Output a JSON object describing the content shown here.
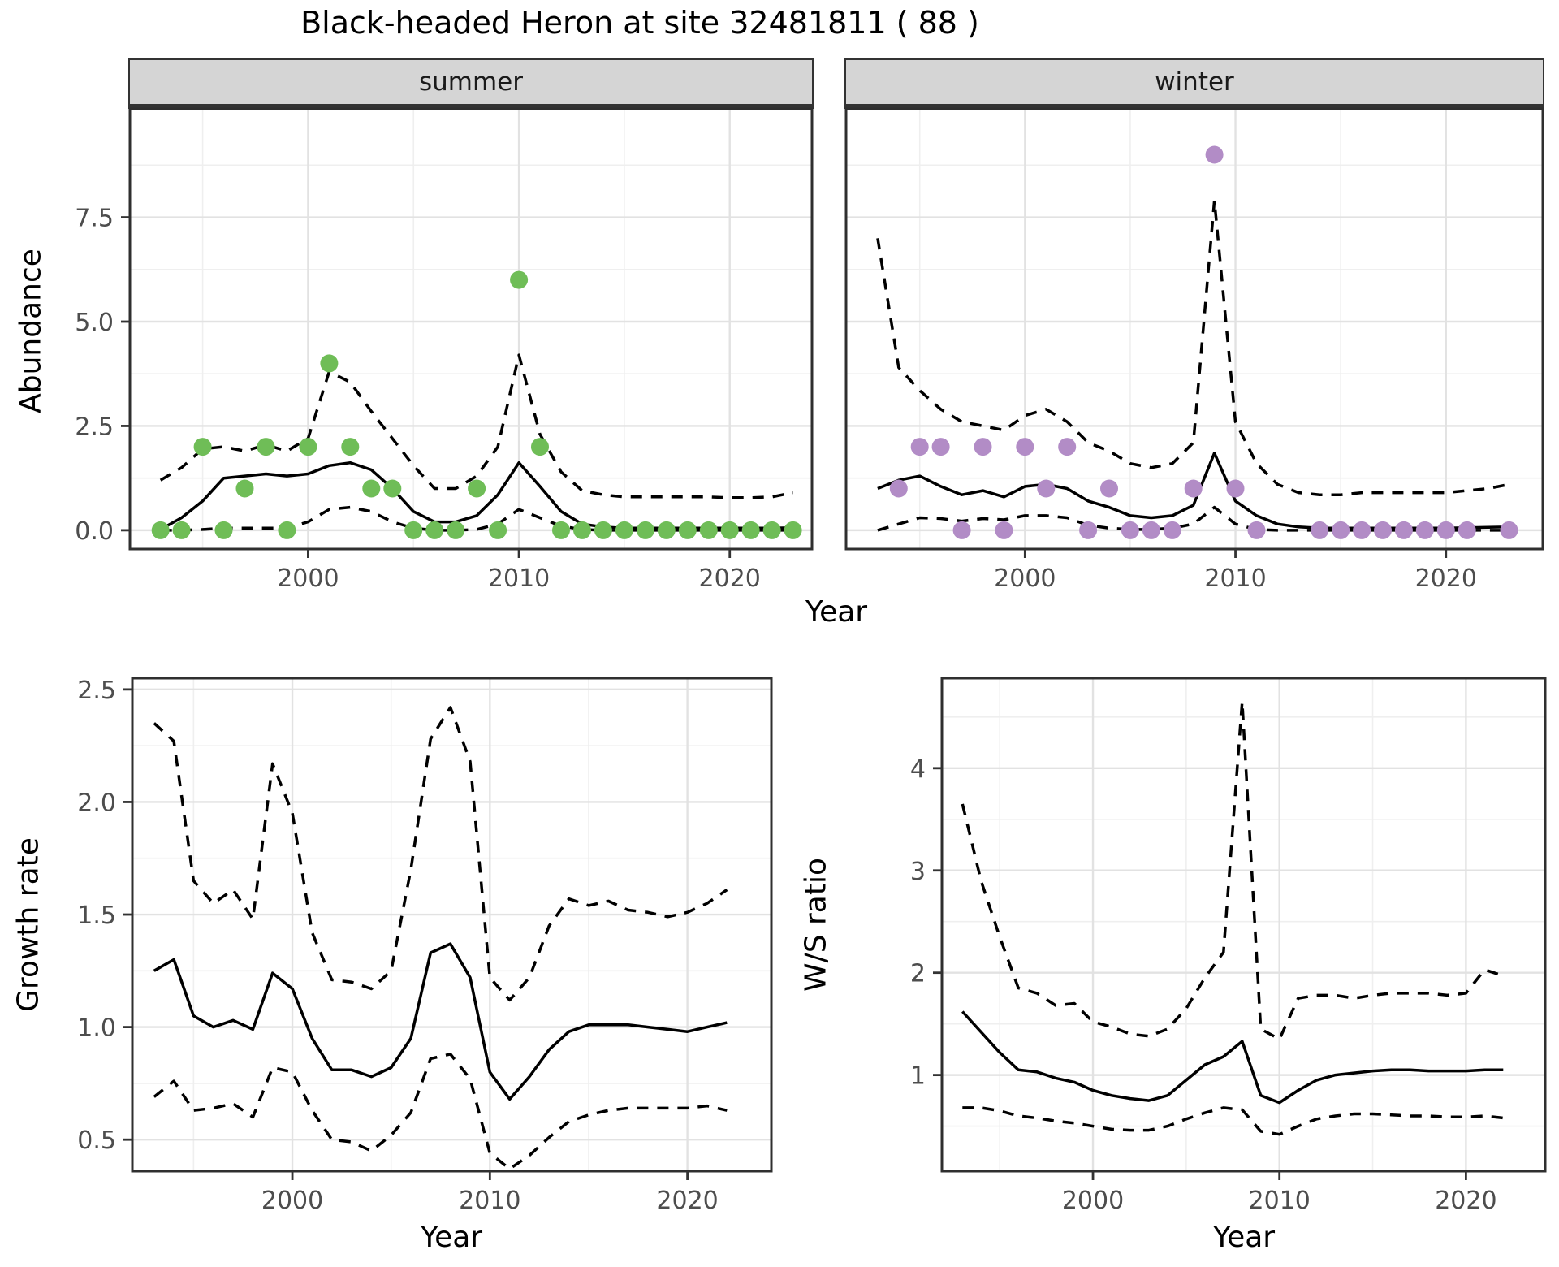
{
  "title": "Black-headed Heron at site 32481811 ( 88 )",
  "colors": {
    "summer_point": "#6fbd57",
    "winter_point": "#b28cc6",
    "line": "#000000",
    "grid_major": "#e2e2e2",
    "grid_minor": "#efefef",
    "panel_border": "#2f2f2f",
    "strip_bg": "#d5d5d5",
    "tick_label": "#4d4d4d"
  },
  "facets": [
    {
      "id": "summer",
      "label": "summer"
    },
    {
      "id": "winter",
      "label": "winter"
    }
  ],
  "axis_titles": {
    "abundance": "Abundance",
    "year": "Year",
    "growth_rate": "Growth rate",
    "ws_ratio": "W/S ratio"
  },
  "chart_data": [
    {
      "name": "abundance_summer",
      "type": "line",
      "facet": "summer",
      "ylabel": "Abundance",
      "xlabel": "Year",
      "x": [
        1993,
        1994,
        1995,
        1996,
        1997,
        1998,
        1999,
        2000,
        2001,
        2002,
        2003,
        2004,
        2005,
        2006,
        2007,
        2008,
        2009,
        2010,
        2011,
        2012,
        2013,
        2014,
        2015,
        2016,
        2017,
        2018,
        2019,
        2020,
        2021,
        2022,
        2023
      ],
      "series": [
        {
          "name": "median_fit",
          "style": "solid",
          "values": [
            0.02,
            0.3,
            0.7,
            1.25,
            1.3,
            1.35,
            1.3,
            1.35,
            1.55,
            1.62,
            1.45,
            1.0,
            0.45,
            0.2,
            0.2,
            0.35,
            0.85,
            1.62,
            1.05,
            0.45,
            0.15,
            0.08,
            0.05,
            0.05,
            0.05,
            0.05,
            0.05,
            0.05,
            0.05,
            0.05,
            0.06
          ]
        },
        {
          "name": "upper_95ci",
          "style": "dashed",
          "values": [
            1.2,
            1.5,
            1.95,
            2.0,
            1.9,
            2.05,
            1.9,
            2.2,
            3.8,
            3.55,
            2.85,
            2.2,
            1.55,
            1.0,
            1.0,
            1.3,
            2.0,
            4.2,
            2.3,
            1.4,
            0.95,
            0.85,
            0.8,
            0.8,
            0.8,
            0.8,
            0.8,
            0.78,
            0.78,
            0.8,
            0.9
          ]
        },
        {
          "name": "lower_95ci",
          "style": "dashed",
          "values": [
            0.0,
            0.0,
            0.02,
            0.05,
            0.05,
            0.05,
            0.05,
            0.2,
            0.5,
            0.55,
            0.45,
            0.2,
            0.05,
            0.0,
            0.0,
            0.02,
            0.15,
            0.5,
            0.3,
            0.1,
            0.02,
            0.0,
            0.0,
            0.0,
            0.0,
            0.0,
            0.0,
            0.0,
            0.0,
            0.0,
            0.0
          ]
        }
      ],
      "points": {
        "name": "observed_counts",
        "color_key": "summer_point",
        "x": [
          1993,
          1994,
          1995,
          1996,
          1997,
          1998,
          1999,
          2000,
          2001,
          2002,
          2003,
          2004,
          2005,
          2006,
          2007,
          2008,
          2009,
          2010,
          2011,
          2012,
          2013,
          2014,
          2015,
          2016,
          2017,
          2018,
          2019,
          2020,
          2021,
          2022,
          2023
        ],
        "y": [
          0,
          0,
          2,
          0,
          1,
          2,
          0,
          2,
          4,
          2,
          1,
          1,
          0,
          0,
          0,
          1,
          0,
          6,
          2,
          0,
          0,
          0,
          0,
          0,
          0,
          0,
          0,
          0,
          0,
          0,
          0
        ]
      },
      "xlim": [
        1991.55,
        2023.9
      ],
      "ylim": [
        -0.45,
        10.1
      ],
      "xticks": {
        "values": [
          2000,
          2010,
          2020
        ],
        "labels": [
          "2000",
          "2010",
          "2020"
        ]
      },
      "yticks": {
        "values": [
          0,
          2.5,
          5,
          7.5
        ],
        "labels": [
          "0.0",
          "2.5",
          "5.0",
          "7.5"
        ]
      },
      "xminor": [
        1995,
        2005,
        2015
      ],
      "yminor": [
        1.25,
        3.75,
        6.25,
        8.75
      ],
      "show_y_axis": true,
      "grid": true,
      "legend": "none"
    },
    {
      "name": "abundance_winter",
      "type": "line",
      "facet": "winter",
      "ylabel": "Abundance",
      "xlabel": "Year",
      "x": [
        1993,
        1994,
        1995,
        1996,
        1997,
        1998,
        1999,
        2000,
        2001,
        2002,
        2003,
        2004,
        2005,
        2006,
        2007,
        2008,
        2009,
        2010,
        2011,
        2012,
        2013,
        2014,
        2015,
        2016,
        2017,
        2018,
        2019,
        2020,
        2021,
        2022,
        2023
      ],
      "series": [
        {
          "name": "median_fit",
          "style": "solid",
          "values": [
            1.0,
            1.2,
            1.3,
            1.05,
            0.85,
            0.95,
            0.8,
            1.05,
            1.1,
            1.0,
            0.7,
            0.55,
            0.35,
            0.3,
            0.35,
            0.6,
            1.85,
            0.7,
            0.35,
            0.15,
            0.08,
            0.05,
            0.05,
            0.05,
            0.05,
            0.05,
            0.05,
            0.05,
            0.06,
            0.07,
            0.08
          ]
        },
        {
          "name": "upper_95ci",
          "style": "dashed",
          "values": [
            7.0,
            3.9,
            3.35,
            2.9,
            2.6,
            2.5,
            2.4,
            2.75,
            2.9,
            2.6,
            2.1,
            1.9,
            1.6,
            1.5,
            1.6,
            2.1,
            7.9,
            2.6,
            1.6,
            1.1,
            0.9,
            0.85,
            0.85,
            0.9,
            0.9,
            0.9,
            0.9,
            0.9,
            0.95,
            1.0,
            1.1
          ]
        },
        {
          "name": "lower_95ci",
          "style": "dashed",
          "values": [
            0.0,
            0.15,
            0.3,
            0.28,
            0.22,
            0.28,
            0.25,
            0.35,
            0.35,
            0.3,
            0.12,
            0.05,
            0.02,
            0.02,
            0.05,
            0.15,
            0.55,
            0.15,
            0.02,
            0.0,
            0.0,
            0.0,
            0.0,
            0.0,
            0.0,
            0.0,
            0.0,
            0.0,
            0.0,
            0.0,
            0.0
          ]
        }
      ],
      "points": {
        "name": "observed_counts",
        "color_key": "winter_point",
        "x": [
          1994,
          1995,
          1996,
          1997,
          1998,
          1999,
          2000,
          2001,
          2002,
          2003,
          2004,
          2005,
          2006,
          2007,
          2008,
          2009,
          2010,
          2011,
          2014,
          2015,
          2016,
          2017,
          2018,
          2019,
          2020,
          2021,
          2023
        ],
        "y": [
          1,
          2,
          2,
          0,
          2,
          0,
          2,
          1,
          2,
          0,
          1,
          0,
          0,
          0,
          1,
          9,
          1,
          0,
          0,
          0,
          0,
          0,
          0,
          0,
          0,
          0,
          0
        ]
      },
      "xlim": [
        1991.5,
        2024.6
      ],
      "ylim": [
        -0.45,
        10.1
      ],
      "xticks": {
        "values": [
          2000,
          2010,
          2020
        ],
        "labels": [
          "2000",
          "2010",
          "2020"
        ]
      },
      "yticks": {
        "values": [
          0,
          2.5,
          5,
          7.5
        ],
        "labels": [
          "0.0",
          "2.5",
          "5.0",
          "7.5"
        ]
      },
      "xminor": [
        1995,
        2005,
        2015
      ],
      "yminor": [
        1.25,
        3.75,
        6.25,
        8.75
      ],
      "show_y_axis": false,
      "grid": true,
      "legend": "none"
    },
    {
      "name": "growth_rate",
      "type": "line",
      "facet": null,
      "ylabel": "Growth rate",
      "xlabel": "Year",
      "x": [
        1993,
        1994,
        1995,
        1996,
        1997,
        1998,
        1999,
        2000,
        2001,
        2002,
        2003,
        2004,
        2005,
        2006,
        2007,
        2008,
        2009,
        2010,
        2011,
        2012,
        2013,
        2014,
        2015,
        2016,
        2017,
        2018,
        2019,
        2020,
        2021,
        2022
      ],
      "series": [
        {
          "name": "median_fit",
          "style": "solid",
          "values": [
            1.25,
            1.3,
            1.05,
            1.0,
            1.03,
            0.99,
            1.24,
            1.17,
            0.95,
            0.81,
            0.81,
            0.78,
            0.82,
            0.95,
            1.33,
            1.37,
            1.22,
            0.8,
            0.68,
            0.78,
            0.9,
            0.98,
            1.01,
            1.01,
            1.01,
            1.0,
            0.99,
            0.98,
            1.0,
            1.02
          ]
        },
        {
          "name": "upper_95ci",
          "style": "dashed",
          "values": [
            2.35,
            2.27,
            1.65,
            1.55,
            1.61,
            1.48,
            2.17,
            1.95,
            1.42,
            1.21,
            1.2,
            1.17,
            1.25,
            1.7,
            2.28,
            2.42,
            2.18,
            1.22,
            1.12,
            1.22,
            1.45,
            1.57,
            1.54,
            1.56,
            1.52,
            1.51,
            1.49,
            1.51,
            1.55,
            1.61
          ]
        },
        {
          "name": "lower_95ci",
          "style": "dashed",
          "values": [
            0.69,
            0.76,
            0.63,
            0.64,
            0.66,
            0.6,
            0.82,
            0.8,
            0.63,
            0.5,
            0.49,
            0.45,
            0.52,
            0.62,
            0.86,
            0.88,
            0.77,
            0.44,
            0.37,
            0.43,
            0.51,
            0.58,
            0.61,
            0.63,
            0.64,
            0.64,
            0.64,
            0.64,
            0.65,
            0.63
          ]
        }
      ],
      "points": null,
      "xlim": [
        1991.9,
        2024.25
      ],
      "ylim": [
        0.36,
        2.55
      ],
      "xticks": {
        "values": [
          2000,
          2010,
          2020
        ],
        "labels": [
          "2000",
          "2010",
          "2020"
        ]
      },
      "yticks": {
        "values": [
          0.5,
          1.0,
          1.5,
          2.0,
          2.5
        ],
        "labels": [
          "0.5",
          "1.0",
          "1.5",
          "2.0",
          "2.5"
        ]
      },
      "xminor": [
        1995,
        2005,
        2015
      ],
      "yminor": [
        0.75,
        1.25,
        1.75,
        2.25
      ],
      "show_y_axis": true,
      "grid": true,
      "legend": "none"
    },
    {
      "name": "ws_ratio",
      "type": "line",
      "facet": null,
      "ylabel": "W/S ratio",
      "xlabel": "Year",
      "x": [
        1993,
        1994,
        1995,
        1996,
        1997,
        1998,
        1999,
        2000,
        2001,
        2002,
        2003,
        2004,
        2005,
        2006,
        2007,
        2008,
        2009,
        2010,
        2011,
        2012,
        2013,
        2014,
        2015,
        2016,
        2017,
        2018,
        2019,
        2020,
        2021,
        2022
      ],
      "series": [
        {
          "name": "median_fit",
          "style": "solid",
          "values": [
            1.62,
            1.42,
            1.22,
            1.05,
            1.03,
            0.97,
            0.93,
            0.85,
            0.8,
            0.77,
            0.75,
            0.8,
            0.95,
            1.1,
            1.18,
            1.33,
            0.8,
            0.73,
            0.85,
            0.95,
            1.0,
            1.02,
            1.04,
            1.05,
            1.05,
            1.04,
            1.04,
            1.04,
            1.05,
            1.05
          ]
        },
        {
          "name": "upper_95ci",
          "style": "dashed",
          "values": [
            3.65,
            2.9,
            2.35,
            1.85,
            1.8,
            1.68,
            1.7,
            1.52,
            1.47,
            1.4,
            1.38,
            1.45,
            1.65,
            1.95,
            2.2,
            4.65,
            1.45,
            1.35,
            1.75,
            1.78,
            1.78,
            1.75,
            1.78,
            1.8,
            1.8,
            1.8,
            1.78,
            1.8,
            2.03,
            1.97
          ]
        },
        {
          "name": "lower_95ci",
          "style": "dashed",
          "values": [
            0.68,
            0.68,
            0.65,
            0.6,
            0.58,
            0.55,
            0.53,
            0.5,
            0.47,
            0.46,
            0.46,
            0.5,
            0.57,
            0.63,
            0.68,
            0.66,
            0.45,
            0.42,
            0.5,
            0.57,
            0.6,
            0.62,
            0.62,
            0.61,
            0.6,
            0.6,
            0.59,
            0.59,
            0.6,
            0.58
          ]
        }
      ],
      "points": null,
      "xlim": [
        1991.9,
        2024.25
      ],
      "ylim": [
        0.06,
        4.88
      ],
      "xticks": {
        "values": [
          2000,
          2010,
          2020
        ],
        "labels": [
          "2000",
          "2010",
          "2020"
        ]
      },
      "yticks": {
        "values": [
          1,
          2,
          3,
          4
        ],
        "labels": [
          "1",
          "2",
          "3",
          "4"
        ]
      },
      "xminor": [
        1995,
        2005,
        2015
      ],
      "yminor": [
        0.5,
        1.5,
        2.5,
        3.5,
        4.5
      ],
      "show_y_axis": true,
      "grid": true,
      "legend": "none"
    }
  ]
}
